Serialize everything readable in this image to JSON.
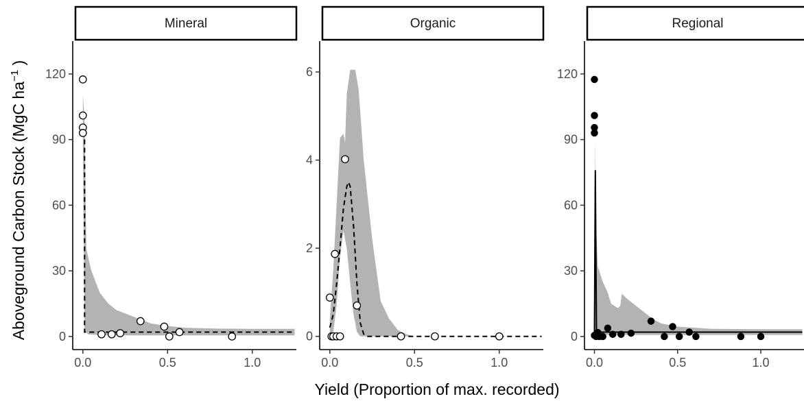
{
  "labels": {
    "ylabel_main": "Aboveground Carbon Stock (MgC ha",
    "ylabel_sup": "−1",
    "ylabel_close": " )",
    "xlabel": "Yield (Proportion of max. recorded)"
  },
  "colors": {
    "ribbon": "#b3b3b3",
    "line": "#000000",
    "text": "#4d4d4d"
  },
  "chart_data": [
    {
      "type": "scatter",
      "panel": "Mineral",
      "marker": "open-circle",
      "fit_line": "dashed",
      "xlim": [
        -0.06,
        1.26
      ],
      "ylim": [
        -6,
        135
      ],
      "xticks": [
        0.0,
        0.5,
        1.0
      ],
      "xtick_labels": [
        "0.0",
        "0.5",
        "1.0"
      ],
      "yticks": [
        0,
        30,
        60,
        90,
        120
      ],
      "ytick_labels": [
        "0",
        "30",
        "60",
        "90",
        "120"
      ],
      "points": [
        [
          0.0,
          117.5
        ],
        [
          0.0,
          101.0
        ],
        [
          0.0,
          95.5
        ],
        [
          0.0,
          93.0
        ],
        [
          0.11,
          1.0
        ],
        [
          0.17,
          1.0
        ],
        [
          0.22,
          1.5
        ],
        [
          0.34,
          7.0
        ],
        [
          0.48,
          4.5
        ],
        [
          0.51,
          0.0
        ],
        [
          0.57,
          2.0
        ],
        [
          0.88,
          0.0
        ]
      ],
      "fit": [
        [
          0.0,
          93.0
        ],
        [
          0.01,
          93.0
        ],
        [
          0.01,
          2.0
        ],
        [
          1.25,
          2.0
        ]
      ],
      "ribbon_upper": [
        [
          0.0,
          110.0
        ],
        [
          0.01,
          100.0
        ],
        [
          0.02,
          40.0
        ],
        [
          0.05,
          30.0
        ],
        [
          0.1,
          20.0
        ],
        [
          0.15,
          15.0
        ],
        [
          0.2,
          12.0
        ],
        [
          0.25,
          10.5
        ],
        [
          0.3,
          9.0
        ],
        [
          0.35,
          7.5
        ],
        [
          0.4,
          6.0
        ],
        [
          0.5,
          4.8
        ],
        [
          0.6,
          4.0
        ],
        [
          0.8,
          3.6
        ],
        [
          1.0,
          3.5
        ],
        [
          1.25,
          3.5
        ]
      ],
      "ribbon_lower": [
        [
          0.0,
          90.0
        ],
        [
          0.01,
          3.0
        ],
        [
          0.03,
          1.0
        ],
        [
          0.1,
          0.6
        ],
        [
          0.3,
          0.5
        ],
        [
          1.25,
          0.5
        ]
      ]
    },
    {
      "type": "scatter",
      "panel": "Organic",
      "marker": "open-circle",
      "fit_line": "dashed",
      "xlim": [
        -0.06,
        1.26
      ],
      "ylim": [
        -0.3,
        6.7
      ],
      "xticks": [
        0.0,
        0.5,
        1.0
      ],
      "xtick_labels": [
        "0.0",
        "0.5",
        "1.0"
      ],
      "yticks": [
        0,
        2,
        4,
        6
      ],
      "ytick_labels": [
        "0",
        "2",
        "4",
        "6"
      ],
      "points": [
        [
          0.0,
          0.88
        ],
        [
          0.01,
          0.0
        ],
        [
          0.02,
          0.0
        ],
        [
          0.03,
          1.87
        ],
        [
          0.04,
          0.0
        ],
        [
          0.06,
          0.0
        ],
        [
          0.09,
          4.02
        ],
        [
          0.16,
          0.7
        ],
        [
          0.42,
          0.0
        ],
        [
          0.62,
          0.0
        ],
        [
          1.0,
          0.0
        ]
      ],
      "fit": [
        [
          0.0,
          0.2
        ],
        [
          0.02,
          0.5
        ],
        [
          0.04,
          1.2
        ],
        [
          0.06,
          2.0
        ],
        [
          0.08,
          2.9
        ],
        [
          0.1,
          3.4
        ],
        [
          0.11,
          3.5
        ],
        [
          0.12,
          3.4
        ],
        [
          0.14,
          2.5
        ],
        [
          0.16,
          1.2
        ],
        [
          0.18,
          0.3
        ],
        [
          0.2,
          0.05
        ],
        [
          0.22,
          0.0
        ],
        [
          1.25,
          0.0
        ]
      ],
      "ribbon_upper": [
        [
          0.0,
          0.4
        ],
        [
          0.02,
          1.5
        ],
        [
          0.04,
          3.0
        ],
        [
          0.06,
          4.5
        ],
        [
          0.08,
          4.6
        ],
        [
          0.09,
          4.4
        ],
        [
          0.1,
          5.5
        ],
        [
          0.12,
          6.05
        ],
        [
          0.15,
          6.05
        ],
        [
          0.17,
          5.6
        ],
        [
          0.2,
          4.0
        ],
        [
          0.25,
          2.2
        ],
        [
          0.3,
          0.8
        ],
        [
          0.35,
          0.4
        ],
        [
          0.4,
          0.15
        ],
        [
          0.45,
          0.05
        ],
        [
          0.5,
          0.0
        ],
        [
          1.25,
          0.0
        ]
      ],
      "ribbon_lower": [
        [
          0.0,
          0.0
        ],
        [
          0.02,
          0.1
        ],
        [
          0.04,
          0.7
        ],
        [
          0.06,
          1.8
        ],
        [
          0.08,
          2.4
        ],
        [
          0.1,
          2.0
        ],
        [
          0.12,
          1.2
        ],
        [
          0.14,
          0.5
        ],
        [
          0.16,
          0.1
        ],
        [
          0.18,
          0.0
        ],
        [
          1.25,
          0.0
        ]
      ]
    },
    {
      "type": "scatter",
      "panel": "Regional",
      "marker": "filled-circle",
      "fit_line": "solid",
      "xlim": [
        -0.06,
        1.26
      ],
      "ylim": [
        -6,
        135
      ],
      "xticks": [
        0.0,
        0.5,
        1.0
      ],
      "xtick_labels": [
        "0.0",
        "0.5",
        "1.0"
      ],
      "yticks": [
        0,
        30,
        60,
        90,
        120
      ],
      "ytick_labels": [
        "0",
        "30",
        "60",
        "90",
        "120"
      ],
      "points": [
        [
          0.0,
          117.5
        ],
        [
          0.0,
          101.0
        ],
        [
          0.0,
          95.5
        ],
        [
          0.0,
          93.0
        ],
        [
          0.0,
          0.5
        ],
        [
          0.01,
          0.0
        ],
        [
          0.02,
          1.8
        ],
        [
          0.03,
          0.0
        ],
        [
          0.05,
          0.0
        ],
        [
          0.08,
          3.8
        ],
        [
          0.11,
          1.0
        ],
        [
          0.16,
          1.0
        ],
        [
          0.22,
          1.5
        ],
        [
          0.34,
          7.0
        ],
        [
          0.42,
          0.0
        ],
        [
          0.47,
          4.5
        ],
        [
          0.51,
          0.0
        ],
        [
          0.57,
          2.0
        ],
        [
          0.61,
          0.0
        ],
        [
          0.88,
          0.0
        ],
        [
          1.0,
          0.0
        ]
      ],
      "fit": [
        [
          0.0,
          0.0
        ],
        [
          0.005,
          76.0
        ],
        [
          0.012,
          2.0
        ],
        [
          1.25,
          2.0
        ]
      ],
      "ribbon_upper": [
        [
          0.0,
          0.0
        ],
        [
          0.005,
          90.0
        ],
        [
          0.01,
          50.0
        ],
        [
          0.02,
          32.0
        ],
        [
          0.05,
          25.0
        ],
        [
          0.08,
          20.0
        ],
        [
          0.1,
          15.0
        ],
        [
          0.14,
          13.0
        ],
        [
          0.155,
          14.0
        ],
        [
          0.165,
          19.5
        ],
        [
          0.2,
          17.0
        ],
        [
          0.25,
          14.0
        ],
        [
          0.3,
          11.0
        ],
        [
          0.35,
          8.0
        ],
        [
          0.4,
          6.0
        ],
        [
          0.5,
          4.5
        ],
        [
          0.7,
          3.5
        ],
        [
          1.0,
          3.3
        ],
        [
          1.25,
          3.3
        ]
      ],
      "ribbon_lower": [
        [
          0.0,
          0.0
        ],
        [
          0.012,
          0.5
        ],
        [
          0.05,
          0.7
        ],
        [
          1.25,
          0.7
        ]
      ]
    }
  ]
}
